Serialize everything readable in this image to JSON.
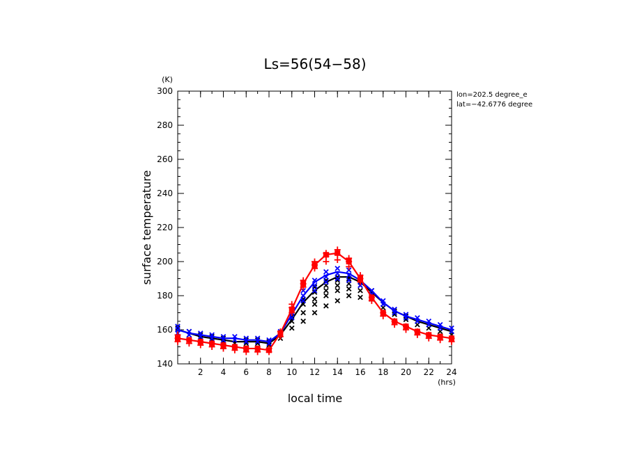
{
  "chart_data": {
    "type": "line",
    "title": "Ls=56(54−58)",
    "xlabel": "local time",
    "ylabel": "surface temperature",
    "x_unit": "(hrs)",
    "y_unit": "(K)",
    "info": [
      "lon=202.5 degree_e",
      "lat=−42.6776 degree"
    ],
    "xlim": [
      0,
      24
    ],
    "ylim": [
      140,
      300
    ],
    "xticks": [
      2,
      4,
      6,
      8,
      10,
      12,
      14,
      16,
      18,
      20,
      22,
      24
    ],
    "yticks": [
      140,
      160,
      180,
      200,
      220,
      240,
      260,
      280,
      300
    ],
    "grid": false,
    "x": [
      0,
      1,
      2,
      3,
      4,
      5,
      6,
      7,
      8,
      9,
      10,
      11,
      12,
      13,
      14,
      15,
      16,
      17,
      18,
      19,
      20,
      21,
      22,
      23,
      24
    ],
    "series": [
      {
        "color": "#000000",
        "marker": "x",
        "values": [
          160,
          158,
          156,
          155,
          154,
          153,
          153,
          153,
          152,
          157,
          166,
          176,
          183,
          188,
          191,
          191,
          188,
          182,
          176,
          171,
          168,
          165,
          163,
          161,
          159
        ],
        "scatter": [
          [
            0,
            158
          ],
          [
            0,
            161
          ],
          [
            1,
            157
          ],
          [
            1,
            159
          ],
          [
            2,
            155
          ],
          [
            2,
            157
          ],
          [
            3,
            154
          ],
          [
            3,
            156
          ],
          [
            4,
            153
          ],
          [
            4,
            155
          ],
          [
            5,
            152
          ],
          [
            5,
            154
          ],
          [
            6,
            152
          ],
          [
            6,
            154
          ],
          [
            7,
            152
          ],
          [
            7,
            154
          ],
          [
            8,
            151
          ],
          [
            8,
            153
          ],
          [
            9,
            155
          ],
          [
            9,
            157
          ],
          [
            10,
            161
          ],
          [
            10,
            165
          ],
          [
            10,
            168
          ],
          [
            11,
            165
          ],
          [
            11,
            170
          ],
          [
            11,
            175
          ],
          [
            11,
            178
          ],
          [
            12,
            170
          ],
          [
            12,
            175
          ],
          [
            12,
            178
          ],
          [
            12,
            182
          ],
          [
            12,
            185
          ],
          [
            13,
            174
          ],
          [
            13,
            180
          ],
          [
            13,
            183
          ],
          [
            13,
            186
          ],
          [
            13,
            189
          ],
          [
            14,
            177
          ],
          [
            14,
            183
          ],
          [
            14,
            186
          ],
          [
            14,
            189
          ],
          [
            14,
            191
          ],
          [
            15,
            180
          ],
          [
            15,
            184
          ],
          [
            15,
            187
          ],
          [
            15,
            190
          ],
          [
            15,
            192
          ],
          [
            16,
            179
          ],
          [
            16,
            183
          ],
          [
            16,
            186
          ],
          [
            16,
            188
          ],
          [
            17,
            178
          ],
          [
            17,
            181
          ],
          [
            17,
            183
          ],
          [
            18,
            173
          ],
          [
            18,
            175
          ],
          [
            19,
            169
          ],
          [
            19,
            171
          ],
          [
            20,
            166
          ],
          [
            20,
            168
          ],
          [
            21,
            163
          ],
          [
            21,
            165
          ],
          [
            22,
            161
          ],
          [
            22,
            163
          ],
          [
            23,
            159
          ],
          [
            23,
            161
          ],
          [
            24,
            157
          ],
          [
            24,
            159
          ]
        ]
      },
      {
        "color": "#0000ff",
        "marker": "x",
        "values": [
          160,
          158,
          157,
          156,
          155,
          155,
          154,
          154,
          153,
          158,
          169,
          180,
          188,
          192,
          194,
          193,
          189,
          183,
          176,
          171,
          168,
          166,
          164,
          162,
          160
        ],
        "scatter": [
          [
            0,
            158
          ],
          [
            0,
            160
          ],
          [
            0,
            162
          ],
          [
            1,
            157
          ],
          [
            1,
            159
          ],
          [
            2,
            156
          ],
          [
            2,
            158
          ],
          [
            3,
            155
          ],
          [
            3,
            157
          ],
          [
            4,
            154
          ],
          [
            4,
            156
          ],
          [
            5,
            154
          ],
          [
            5,
            156
          ],
          [
            6,
            153
          ],
          [
            6,
            155
          ],
          [
            7,
            153
          ],
          [
            7,
            155
          ],
          [
            8,
            152
          ],
          [
            8,
            154
          ],
          [
            9,
            157
          ],
          [
            9,
            159
          ],
          [
            10,
            167
          ],
          [
            10,
            170
          ],
          [
            11,
            177
          ],
          [
            11,
            180
          ],
          [
            11,
            183
          ],
          [
            12,
            183
          ],
          [
            12,
            186
          ],
          [
            12,
            189
          ],
          [
            13,
            188
          ],
          [
            13,
            191
          ],
          [
            13,
            194
          ],
          [
            14,
            190
          ],
          [
            14,
            193
          ],
          [
            14,
            196
          ],
          [
            15,
            189
          ],
          [
            15,
            192
          ],
          [
            15,
            195
          ],
          [
            16,
            186
          ],
          [
            16,
            189
          ],
          [
            16,
            191
          ],
          [
            17,
            181
          ],
          [
            17,
            183
          ],
          [
            18,
            175
          ],
          [
            18,
            177
          ],
          [
            19,
            170
          ],
          [
            19,
            172
          ],
          [
            20,
            167
          ],
          [
            20,
            169
          ],
          [
            21,
            165
          ],
          [
            21,
            167
          ],
          [
            22,
            163
          ],
          [
            22,
            165
          ],
          [
            23,
            161
          ],
          [
            23,
            163
          ],
          [
            24,
            159
          ],
          [
            24,
            161
          ]
        ]
      },
      {
        "color": "#ff0000",
        "marker": "+",
        "values": [
          155,
          154,
          153,
          152,
          151,
          150,
          149,
          149,
          148,
          158,
          172,
          187,
          198,
          204,
          205,
          200,
          190,
          179,
          170,
          165,
          162,
          159,
          157,
          156,
          155
        ],
        "scatter": [
          [
            0,
            153
          ],
          [
            0,
            155
          ],
          [
            0,
            157
          ],
          [
            1,
            152
          ],
          [
            1,
            154
          ],
          [
            2,
            151
          ],
          [
            2,
            153
          ],
          [
            3,
            150
          ],
          [
            3,
            152
          ],
          [
            4,
            149
          ],
          [
            4,
            151
          ],
          [
            5,
            148
          ],
          [
            5,
            150
          ],
          [
            6,
            147
          ],
          [
            6,
            149
          ],
          [
            7,
            147
          ],
          [
            7,
            149
          ],
          [
            8,
            147
          ],
          [
            8,
            149
          ],
          [
            9,
            156
          ],
          [
            9,
            159
          ],
          [
            10,
            170
          ],
          [
            10,
            173
          ],
          [
            10,
            175
          ],
          [
            11,
            185
          ],
          [
            11,
            187
          ],
          [
            11,
            189
          ],
          [
            12,
            196
          ],
          [
            12,
            198
          ],
          [
            12,
            200
          ],
          [
            13,
            200
          ],
          [
            13,
            203
          ],
          [
            13,
            205
          ],
          [
            14,
            201
          ],
          [
            14,
            204
          ],
          [
            14,
            207
          ],
          [
            15,
            197
          ],
          [
            15,
            200
          ],
          [
            15,
            202
          ],
          [
            16,
            188
          ],
          [
            16,
            190
          ],
          [
            16,
            192
          ],
          [
            17,
            177
          ],
          [
            17,
            179
          ],
          [
            18,
            168
          ],
          [
            18,
            170
          ],
          [
            19,
            163
          ],
          [
            19,
            165
          ],
          [
            20,
            160
          ],
          [
            20,
            162
          ],
          [
            21,
            157
          ],
          [
            21,
            159
          ],
          [
            22,
            155
          ],
          [
            22,
            157
          ],
          [
            23,
            154
          ],
          [
            23,
            156
          ],
          [
            24,
            153
          ],
          [
            24,
            155
          ]
        ]
      }
    ]
  }
}
